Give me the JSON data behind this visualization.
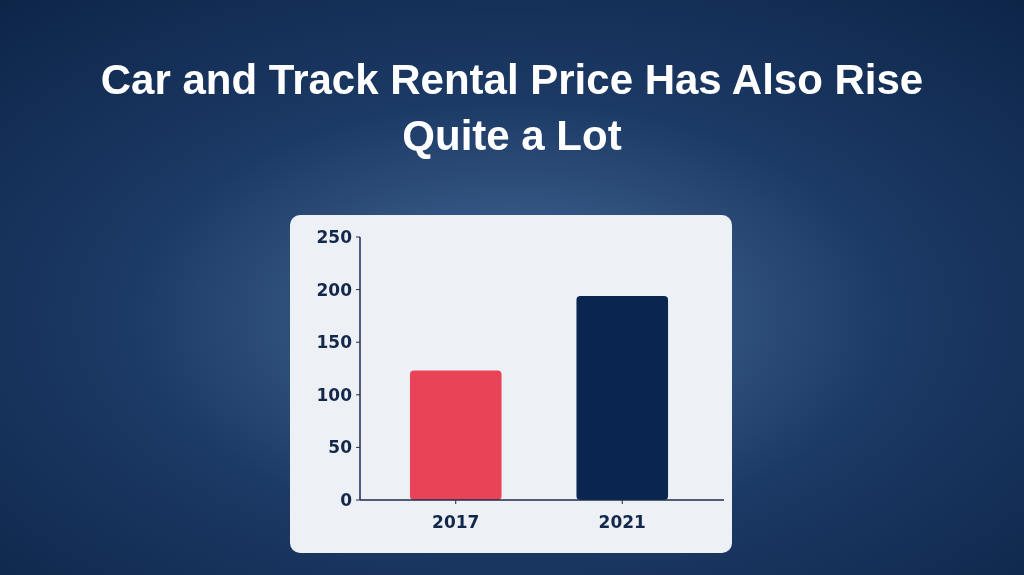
{
  "chart_data": {
    "type": "bar",
    "title": "Car and Track Rental Price Has Also Rise Quite a Lot",
    "categories": [
      "2017",
      "2021"
    ],
    "values": [
      123,
      194
    ],
    "colors": [
      "#e84357",
      "#0a2550"
    ],
    "ylim": [
      0,
      250
    ],
    "yticks": [
      0,
      50,
      100,
      150,
      200,
      250
    ],
    "grid": false
  }
}
